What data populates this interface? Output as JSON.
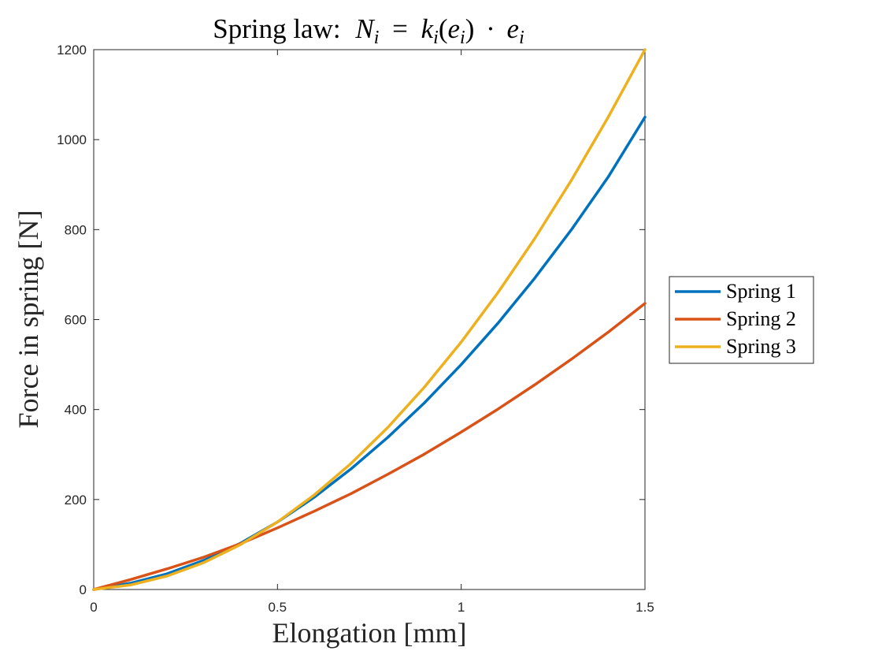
{
  "chart_data": {
    "type": "line",
    "title": "Spring law: N_i = k_i(e_i) · e_i",
    "title_parts": {
      "lead": "Spring law:",
      "N": "N",
      "sub1": "i",
      "eq": "=",
      "k": "k",
      "sub2": "i",
      "open": "(",
      "e1": "e",
      "sub3": "i",
      "close": ")",
      "dot": "·",
      "e2": "e",
      "sub4": "i"
    },
    "xlabel": "Elongation [mm]",
    "ylabel": "Force in spring [N]",
    "xlim": [
      0,
      1.5
    ],
    "ylim": [
      0,
      1200
    ],
    "xticks": [
      0,
      0.5,
      1,
      1.5
    ],
    "xtick_labels": [
      "0",
      "0.5",
      "1",
      "1.5"
    ],
    "yticks": [
      0,
      200,
      400,
      600,
      800,
      1000,
      1200
    ],
    "ytick_labels": [
      "0",
      "200",
      "400",
      "600",
      "800",
      "1000",
      "1200"
    ],
    "grid": false,
    "legend_placement": "outside-right",
    "x": [
      0,
      0.1,
      0.2,
      0.3,
      0.4,
      0.5,
      0.6,
      0.7,
      0.8,
      0.9,
      1.0,
      1.1,
      1.2,
      1.3,
      1.4,
      1.5
    ],
    "series": [
      {
        "name": "Spring 1",
        "color": "#0072BD",
        "values": [
          0,
          14,
          35,
          65,
          103,
          150,
          205,
          268,
          338,
          415,
          500,
          592,
          692,
          800,
          917,
          1050
        ]
      },
      {
        "name": "Spring 2",
        "color": "#D95319",
        "values": [
          0,
          22,
          46,
          72,
          102,
          137,
          174,
          213,
          256,
          301,
          350,
          401,
          455,
          512,
          572,
          636
        ]
      },
      {
        "name": "Spring 3",
        "color": "#EDB120",
        "values": [
          0,
          10,
          30,
          60,
          100,
          150,
          210,
          280,
          360,
          450,
          550,
          660,
          780,
          910,
          1050,
          1200
        ]
      }
    ]
  }
}
